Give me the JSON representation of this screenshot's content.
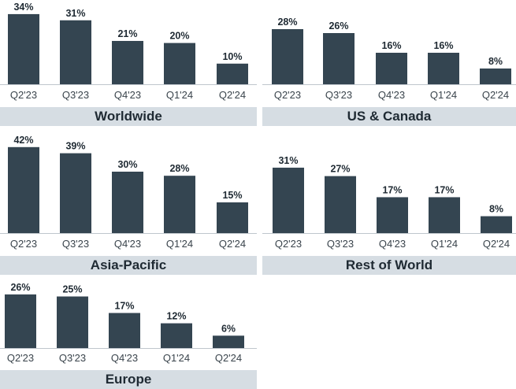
{
  "colors": {
    "bar": "#344551",
    "banner": "#d6dde3",
    "text": "#1f2a33",
    "tick": "#3a444c",
    "axis": "#bfc6cc"
  },
  "chart_data": [
    {
      "type": "bar",
      "title": "Worldwide",
      "categories": [
        "Q2'23",
        "Q3'23",
        "Q4'23",
        "Q1'24",
        "Q2'24"
      ],
      "values": [
        34,
        31,
        21,
        20,
        10
      ],
      "value_labels": [
        "34%",
        "31%",
        "21%",
        "20%",
        "10%"
      ],
      "unit": "%"
    },
    {
      "type": "bar",
      "title": "US & Canada",
      "categories": [
        "Q2'23",
        "Q3'23",
        "Q4'23",
        "Q1'24",
        "Q2'24"
      ],
      "values": [
        28,
        26,
        16,
        16,
        8
      ],
      "value_labels": [
        "28%",
        "26%",
        "16%",
        "16%",
        "8%"
      ],
      "unit": "%"
    },
    {
      "type": "bar",
      "title": "Asia-Pacific",
      "categories": [
        "Q2'23",
        "Q3'23",
        "Q4'23",
        "Q1'24",
        "Q2'24"
      ],
      "values": [
        42,
        39,
        30,
        28,
        15
      ],
      "value_labels": [
        "42%",
        "39%",
        "30%",
        "28%",
        "15%"
      ],
      "unit": "%"
    },
    {
      "type": "bar",
      "title": "Rest of World",
      "categories": [
        "Q2'23",
        "Q3'23",
        "Q4'23",
        "Q1'24",
        "Q2'24"
      ],
      "values": [
        31,
        27,
        17,
        17,
        8
      ],
      "value_labels": [
        "31%",
        "27%",
        "17%",
        "17%",
        "8%"
      ],
      "unit": "%"
    },
    {
      "type": "bar",
      "title": "Europe",
      "categories": [
        "Q2'23",
        "Q3'23",
        "Q4'23",
        "Q1'24",
        "Q2'24"
      ],
      "values": [
        26,
        25,
        17,
        12,
        6
      ],
      "value_labels": [
        "26%",
        "25%",
        "17%",
        "12%",
        "6%"
      ],
      "unit": "%"
    }
  ]
}
